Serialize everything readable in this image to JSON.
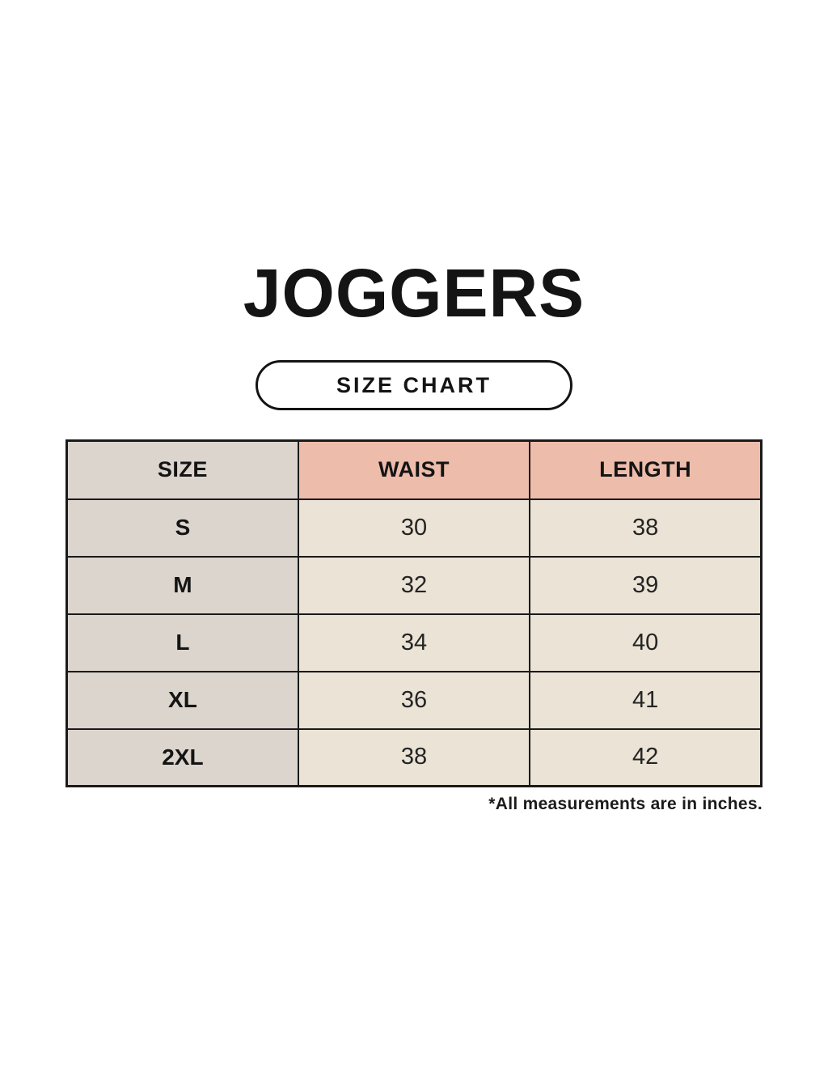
{
  "colors": {
    "background": "#f6f2e7",
    "header_accent": "#edbcab",
    "size_column": "#dcd5ce",
    "value_cell": "#eae3d6",
    "border": "#1a1a1a",
    "text": "#141414"
  },
  "chart_data": {
    "type": "table",
    "title": "JOGGERS",
    "subtitle": "SIZE CHART",
    "columns": [
      "SIZE",
      "WAIST",
      "LENGTH"
    ],
    "rows": [
      [
        "S",
        "30",
        "38"
      ],
      [
        "M",
        "32",
        "39"
      ],
      [
        "L",
        "34",
        "40"
      ],
      [
        "XL",
        "36",
        "41"
      ],
      [
        "2XL",
        "38",
        "42"
      ]
    ],
    "units_note": "*All measurements are in inches."
  }
}
